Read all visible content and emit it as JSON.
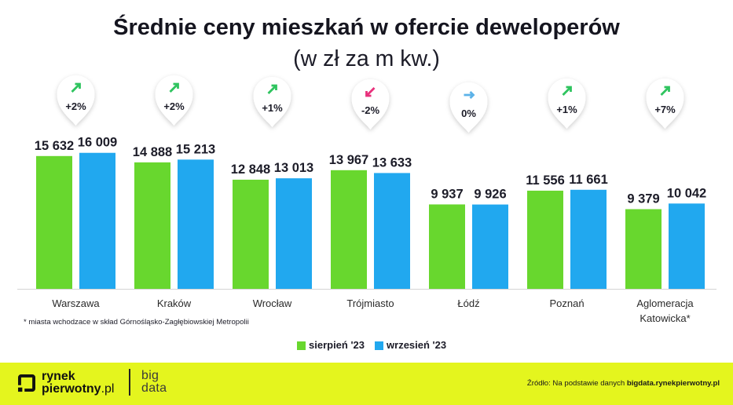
{
  "chart_data": {
    "type": "bar",
    "title": "Średnie ceny mieszkań w ofercie deweloperów",
    "subtitle": "(w zł za m kw.)",
    "categories": [
      "Warszawa",
      "Kraków",
      "Wrocław",
      "Trójmiasto",
      "Łódź",
      "Poznań",
      "Aglomeracja Katowicka*"
    ],
    "series": [
      {
        "name": "sierpień '23",
        "color": "#68d72e",
        "values": [
          15632,
          14888,
          12848,
          13967,
          9937,
          11556,
          9379
        ],
        "data_labels": [
          "15 632",
          "14 888",
          "12 848",
          "13 967",
          "9 937",
          "11 556",
          "9 379"
        ]
      },
      {
        "name": "wrzesień '23",
        "color": "#21a8ef",
        "values": [
          16009,
          15213,
          13013,
          13633,
          9926,
          11661,
          10042
        ],
        "data_labels": [
          "16 009",
          "15 213",
          "13 013",
          "13 633",
          "9 926",
          "11 661",
          "10 042"
        ]
      }
    ],
    "changes": [
      {
        "label": "+2%",
        "icon": "arrow-up-right-icon",
        "color": "#2fc45f"
      },
      {
        "label": "+2%",
        "icon": "arrow-up-right-icon",
        "color": "#2fc45f"
      },
      {
        "label": "+1%",
        "icon": "arrow-up-right-icon",
        "color": "#2fc45f"
      },
      {
        "label": "-2%",
        "icon": "arrow-down-left-icon",
        "color": "#e8317c"
      },
      {
        "label": "0%",
        "icon": "arrow-right-icon",
        "color": "#5cb2e8"
      },
      {
        "label": "+1%",
        "icon": "arrow-up-right-icon",
        "color": "#2fc45f"
      },
      {
        "label": "+7%",
        "icon": "arrow-up-right-icon",
        "color": "#2fc45f"
      }
    ],
    "ylim": [
      0,
      17000
    ],
    "grid": false,
    "legend": "bottom-center",
    "footnote": "* miasta wchodzace w skład Górnośląsko-Zagłębiowskiej Metropolii"
  },
  "footer": {
    "background": "#e4f51e",
    "logo": {
      "line1": "rynek",
      "line2_bold": "pierwotny",
      "line2_suffix": ".pl",
      "product_line1": "big",
      "product_line2": "data"
    },
    "source_prefix": "Źródło: Na podstawie danych ",
    "source_link": "bigdata.rynekpierwotny.pl"
  }
}
